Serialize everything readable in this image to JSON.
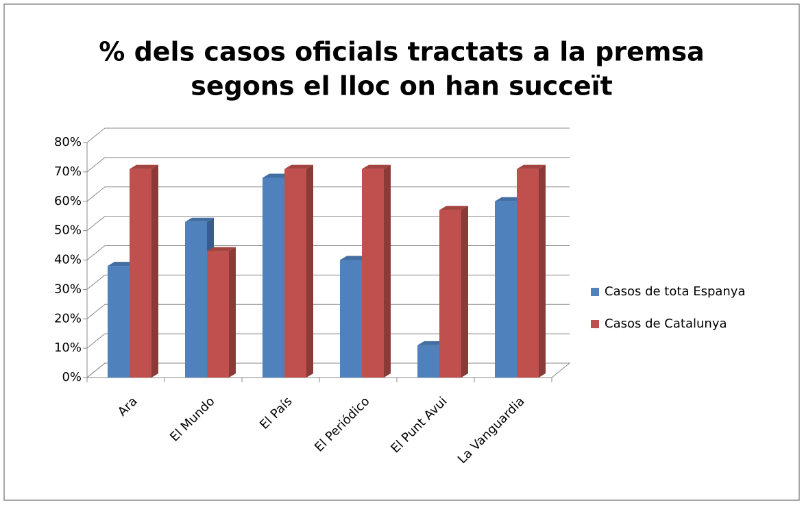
{
  "chart_data": {
    "type": "bar3d",
    "title": [
      "% dels casos oficials tractats a la premsa",
      "segons el lloc on han succeït"
    ],
    "categories": [
      "Ara",
      "El Mundo",
      "El País",
      "El Periódico",
      "El Punt Avui",
      "La Vanguardia"
    ],
    "series": [
      {
        "name": "Casos de tota Espanya",
        "color": "#4f81bd",
        "values": [
          38,
          53,
          68,
          40,
          11,
          60
        ]
      },
      {
        "name": "Casos de Catalunya",
        "color": "#c0504d",
        "values": [
          71,
          43,
          71,
          71,
          57,
          71
        ]
      }
    ],
    "ylim": [
      0,
      80
    ],
    "yticks": [
      {
        "value": 0,
        "label": "0%"
      },
      {
        "value": 10,
        "label": "10%"
      },
      {
        "value": 20,
        "label": "20%"
      },
      {
        "value": 30,
        "label": "30%"
      },
      {
        "value": 40,
        "label": "40%"
      },
      {
        "value": 50,
        "label": "50%"
      },
      {
        "value": 60,
        "label": "60%"
      },
      {
        "value": 70,
        "label": "70%"
      },
      {
        "value": 80,
        "label": "80%"
      }
    ],
    "grid": true,
    "legend": "right"
  }
}
